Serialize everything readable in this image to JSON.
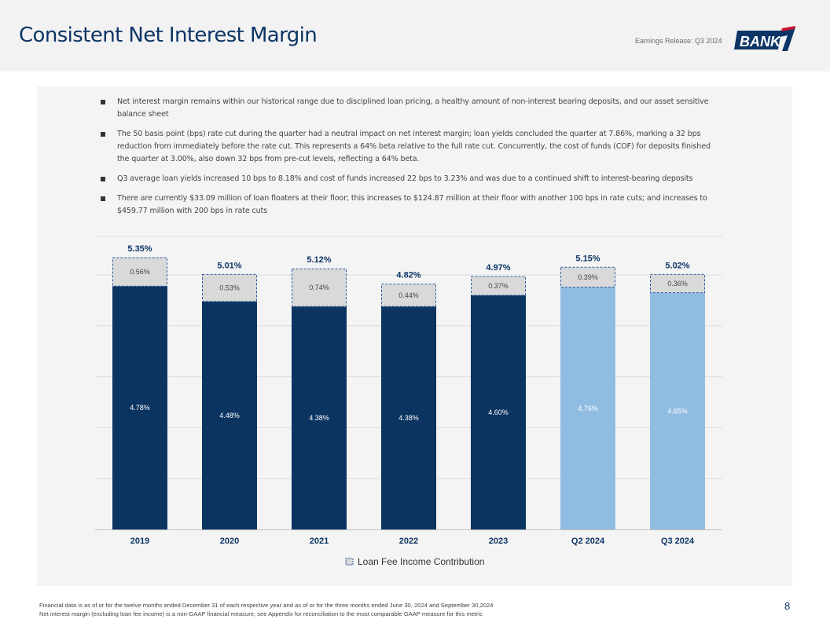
{
  "header": {
    "title": "Consistent Net Interest Margin",
    "release_label": "Earnings Release: Q3 2024",
    "logo_text": "BANK 7"
  },
  "bullets": [
    "Net interest margin remains within our historical range due to disciplined loan pricing, a healthy amount of non-interest bearing deposits, and our asset sensitive balance sheet",
    "The 50 basis point (bps) rate cut during the quarter had a neutral impact on net interest margin; loan yields concluded the quarter at 7.86%, marking a 32 bps reduction from immediately before the rate cut. This represents a 64% beta relative to the full rate cut. Concurrently, the cost of funds (COF) for deposits finished the quarter at 3.00%, also down 32 bps from pre-cut levels, reflecting a 64% beta.",
    "Q3 average loan yields increased 10 bps to 8.18% and cost of funds increased 22 bps to 3.23% and was due to a continued shift to interest-bearing deposits",
    "There are currently $33.09 million of loan floaters at their floor; this increases to $124.87 million at their floor with another 100 bps in rate cuts; and increases to $459.77 million with 200 bps in rate cuts"
  ],
  "chart_data": {
    "type": "bar",
    "stacked": true,
    "categories": [
      "2019",
      "2020",
      "2021",
      "2022",
      "2023",
      "Q2 2024",
      "Q3 2024"
    ],
    "series": [
      {
        "name": "Net interest margin (excluding loan fee income)",
        "values": [
          4.78,
          4.48,
          4.38,
          4.38,
          4.6,
          4.76,
          4.65
        ],
        "labels": [
          "4.78%",
          "4.48%",
          "4.38%",
          "4.38%",
          "4.60%",
          "4.76%",
          "4.65%"
        ]
      },
      {
        "name": "Loan Fee Income Contribution",
        "values": [
          0.56,
          0.53,
          0.74,
          0.44,
          0.37,
          0.39,
          0.36
        ],
        "labels": [
          "0.56%",
          "0.53%",
          "0.74%",
          "0.44%",
          "0.37%",
          "0.39%",
          "0.36%"
        ]
      }
    ],
    "totals": [
      5.35,
      5.01,
      5.12,
      4.82,
      4.97,
      5.15,
      5.02
    ],
    "total_labels": [
      "5.35%",
      "5.01%",
      "5.12%",
      "4.82%",
      "4.97%",
      "5.15%",
      "5.02%"
    ],
    "highlight_categories": [
      "Q2 2024",
      "Q3 2024"
    ],
    "legend": [
      "Loan Fee Income Contribution"
    ],
    "legend_position": "bottom",
    "ylim": [
      0,
      5.5
    ],
    "grid": true,
    "colors": {
      "base": "#0b3461",
      "highlight": "#90bce2",
      "fee_fill": "#d9d9d9",
      "fee_border": "#2e5c9a",
      "grid": "#dcdcdc",
      "axis_text": "#0c3565"
    }
  },
  "footnotes": [
    "Financial data is as of or for the twelve months ended December 31 of each respective year and as of or for the three months ended June 30, 2024 and September 30,2024",
    "Net interest margin (excluding loan fee income) is a non-GAAP financial measure, see Appendix for reconciliation to the most comparable GAAP measure for this metric"
  ],
  "page_number": "8"
}
